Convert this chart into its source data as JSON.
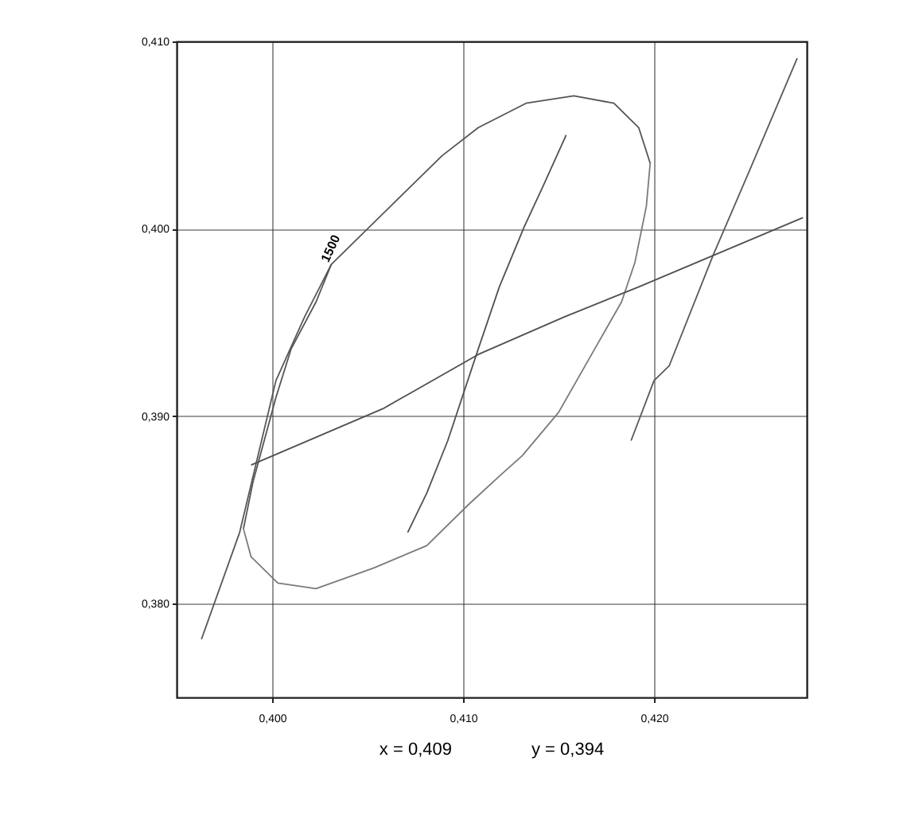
{
  "chart_data": {
    "type": "line",
    "xlim": [
      0.395,
      0.428
    ],
    "ylim": [
      0.375,
      0.41
    ],
    "grid": true,
    "marker": "none",
    "line_style": "solid",
    "xticks": [
      {
        "value": 0.4,
        "label": "0,400"
      },
      {
        "value": 0.41,
        "label": "0,410"
      },
      {
        "value": 0.42,
        "label": "0,420"
      }
    ],
    "yticks": [
      {
        "value": 0.38,
        "label": "0,380"
      },
      {
        "value": 0.39,
        "label": "0,390"
      },
      {
        "value": 0.4,
        "label": "0,400"
      },
      {
        "value": 0.41,
        "label": "0,410"
      }
    ],
    "series": [
      {
        "color": "#555555",
        "x": [
          0.3985,
          0.399,
          0.4002,
          0.401,
          0.4023,
          0.4031,
          0.4064,
          0.4089,
          0.4108,
          0.4133,
          0.4158,
          0.4179,
          0.4192,
          0.4198
        ],
        "values": [
          0.384,
          0.3865,
          0.391,
          0.3936,
          0.3961,
          0.3981,
          0.4014,
          0.4039,
          0.4054,
          0.4067,
          0.4071,
          0.4067,
          0.4054,
          0.4035
        ]
      },
      {
        "color": "#7a7a7a",
        "x": [
          0.3985,
          0.3989,
          0.4003,
          0.4023,
          0.4053,
          0.4081,
          0.4103,
          0.4119,
          0.4131,
          0.415,
          0.4169,
          0.4183,
          0.419,
          0.4196,
          0.4198
        ],
        "values": [
          0.384,
          0.3825,
          0.3811,
          0.3808,
          0.3819,
          0.3831,
          0.3853,
          0.3868,
          0.3879,
          0.3902,
          0.3936,
          0.3961,
          0.3982,
          0.4012,
          0.4035
        ]
      },
      {
        "color": "#575757",
        "x": [
          0.3963,
          0.3983,
          0.4002,
          0.4017,
          0.4031
        ],
        "values": [
          0.3781,
          0.3838,
          0.3919,
          0.3953,
          0.3981
        ]
      },
      {
        "color": "#515151",
        "x": [
          0.4071,
          0.4081,
          0.4092,
          0.4108,
          0.4119,
          0.4132,
          0.4142,
          0.4154
        ],
        "values": [
          0.3838,
          0.3859,
          0.3887,
          0.3936,
          0.3969,
          0.4001,
          0.4023,
          0.405
        ]
      },
      {
        "color": "#595959",
        "x": [
          0.4188,
          0.42,
          0.4208,
          0.4231,
          0.425,
          0.4275
        ],
        "values": [
          0.3887,
          0.3919,
          0.3927,
          0.3986,
          0.4031,
          0.4091
        ]
      },
      {
        "color": "#4f4f4f",
        "x": [
          0.3989,
          0.4058,
          0.4108,
          0.4153,
          0.4192,
          0.4278
        ],
        "values": [
          0.3874,
          0.3904,
          0.3933,
          0.3953,
          0.3969,
          0.4006
        ]
      }
    ],
    "annotations": [
      {
        "text": "1500",
        "x": 0.4031,
        "y": 0.3981
      },
      "x = 0,409",
      "y = 0,394"
    ]
  }
}
